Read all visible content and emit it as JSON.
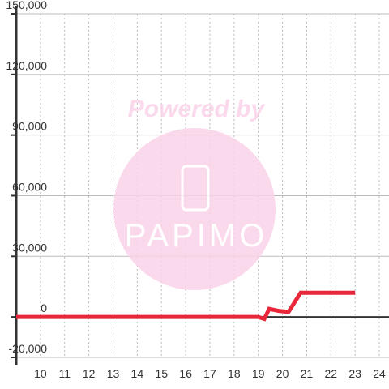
{
  "chart_data": {
    "type": "line",
    "watermark": {
      "top": "Powered by",
      "logo": "PAPIMO"
    },
    "x": [
      9,
      19,
      19.25,
      19.45,
      19.85,
      20.25,
      20.75,
      23
    ],
    "series": [
      {
        "color": "#e8283a",
        "values": [
          0,
          0,
          -1000,
          4000,
          3000,
          2500,
          12000,
          12000
        ]
      }
    ],
    "xlim": [
      9,
      24.4
    ],
    "xticks": [
      10,
      11,
      12,
      13,
      14,
      15,
      16,
      17,
      18,
      19,
      20,
      21,
      22,
      23,
      24
    ],
    "ylim": [
      -20000,
      150000
    ],
    "yticks": [
      {
        "value": -20000,
        "label": "-20,000"
      },
      0,
      {
        "value": 30000,
        "label": "30,000"
      },
      {
        "value": 60000,
        "label": "60,000"
      },
      {
        "value": 90000,
        "label": "90,000"
      },
      {
        "value": 120000,
        "label": "120,000"
      },
      {
        "value": 150000,
        "label": "150,000"
      }
    ],
    "grid": true
  }
}
